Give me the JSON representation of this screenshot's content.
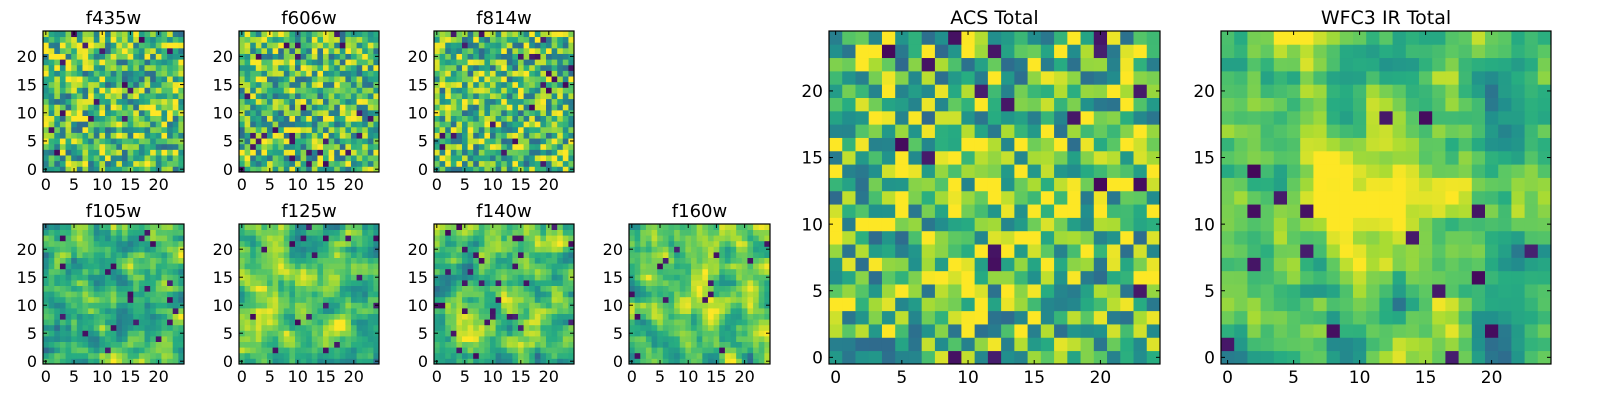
{
  "chart_data": [
    {
      "type": "heatmap",
      "title": "f435w",
      "xlim": [
        0,
        24
      ],
      "ylim": [
        0,
        24
      ],
      "xticks": [
        0,
        5,
        10,
        15,
        20
      ],
      "yticks": [
        0,
        5,
        10,
        15,
        20
      ],
      "colormap": "viridis",
      "pixel_seed": 11,
      "smoothness": 0,
      "center_bright": 0.0
    },
    {
      "type": "heatmap",
      "title": "f606w",
      "xlim": [
        0,
        24
      ],
      "ylim": [
        0,
        24
      ],
      "xticks": [
        0,
        5,
        10,
        15,
        20
      ],
      "yticks": [
        0,
        5,
        10,
        15,
        20
      ],
      "colormap": "viridis",
      "pixel_seed": 23,
      "smoothness": 0,
      "center_bright": 0.0
    },
    {
      "type": "heatmap",
      "title": "f814w",
      "xlim": [
        0,
        24
      ],
      "ylim": [
        0,
        24
      ],
      "xticks": [
        0,
        5,
        10,
        15,
        20
      ],
      "yticks": [
        0,
        5,
        10,
        15,
        20
      ],
      "colormap": "viridis",
      "pixel_seed": 37,
      "smoothness": 0,
      "center_bright": 0.0
    },
    {
      "type": "heatmap",
      "title": "f105w",
      "xlim": [
        0,
        24
      ],
      "ylim": [
        0,
        24
      ],
      "xticks": [
        0,
        5,
        10,
        15,
        20
      ],
      "yticks": [
        0,
        5,
        10,
        15,
        20
      ],
      "colormap": "viridis",
      "pixel_seed": 41,
      "smoothness": 1,
      "center_bright": 0.0
    },
    {
      "type": "heatmap",
      "title": "f125w",
      "xlim": [
        0,
        24
      ],
      "ylim": [
        0,
        24
      ],
      "xticks": [
        0,
        5,
        10,
        15,
        20
      ],
      "yticks": [
        0,
        5,
        10,
        15,
        20
      ],
      "colormap": "viridis",
      "pixel_seed": 53,
      "smoothness": 1,
      "center_bright": 0.0
    },
    {
      "type": "heatmap",
      "title": "f140w",
      "xlim": [
        0,
        24
      ],
      "ylim": [
        0,
        24
      ],
      "xticks": [
        0,
        5,
        10,
        15,
        20
      ],
      "yticks": [
        0,
        5,
        10,
        15,
        20
      ],
      "colormap": "viridis",
      "pixel_seed": 67,
      "smoothness": 1,
      "center_bright": 0.0
    },
    {
      "type": "heatmap",
      "title": "f160w",
      "xlim": [
        0,
        24
      ],
      "ylim": [
        0,
        24
      ],
      "xticks": [
        0,
        5,
        10,
        15,
        20
      ],
      "yticks": [
        0,
        5,
        10,
        15,
        20
      ],
      "colormap": "viridis",
      "pixel_seed": 79,
      "smoothness": 1,
      "center_bright": 0.2
    },
    {
      "type": "heatmap",
      "title": "ACS Total",
      "xlim": [
        0,
        24
      ],
      "ylim": [
        0,
        24
      ],
      "xticks": [
        0,
        5,
        10,
        15,
        20
      ],
      "yticks": [
        0,
        5,
        10,
        15,
        20
      ],
      "colormap": "viridis",
      "pixel_seed": 97,
      "smoothness": 0,
      "center_bright": 0.1
    },
    {
      "type": "heatmap",
      "title": "WFC3 IR Total",
      "xlim": [
        0,
        24
      ],
      "ylim": [
        0,
        24
      ],
      "xticks": [
        0,
        5,
        10,
        15,
        20
      ],
      "yticks": [
        0,
        5,
        10,
        15,
        20
      ],
      "colormap": "viridis",
      "pixel_seed": 131,
      "smoothness": 1,
      "center_bright": 0.45
    }
  ]
}
